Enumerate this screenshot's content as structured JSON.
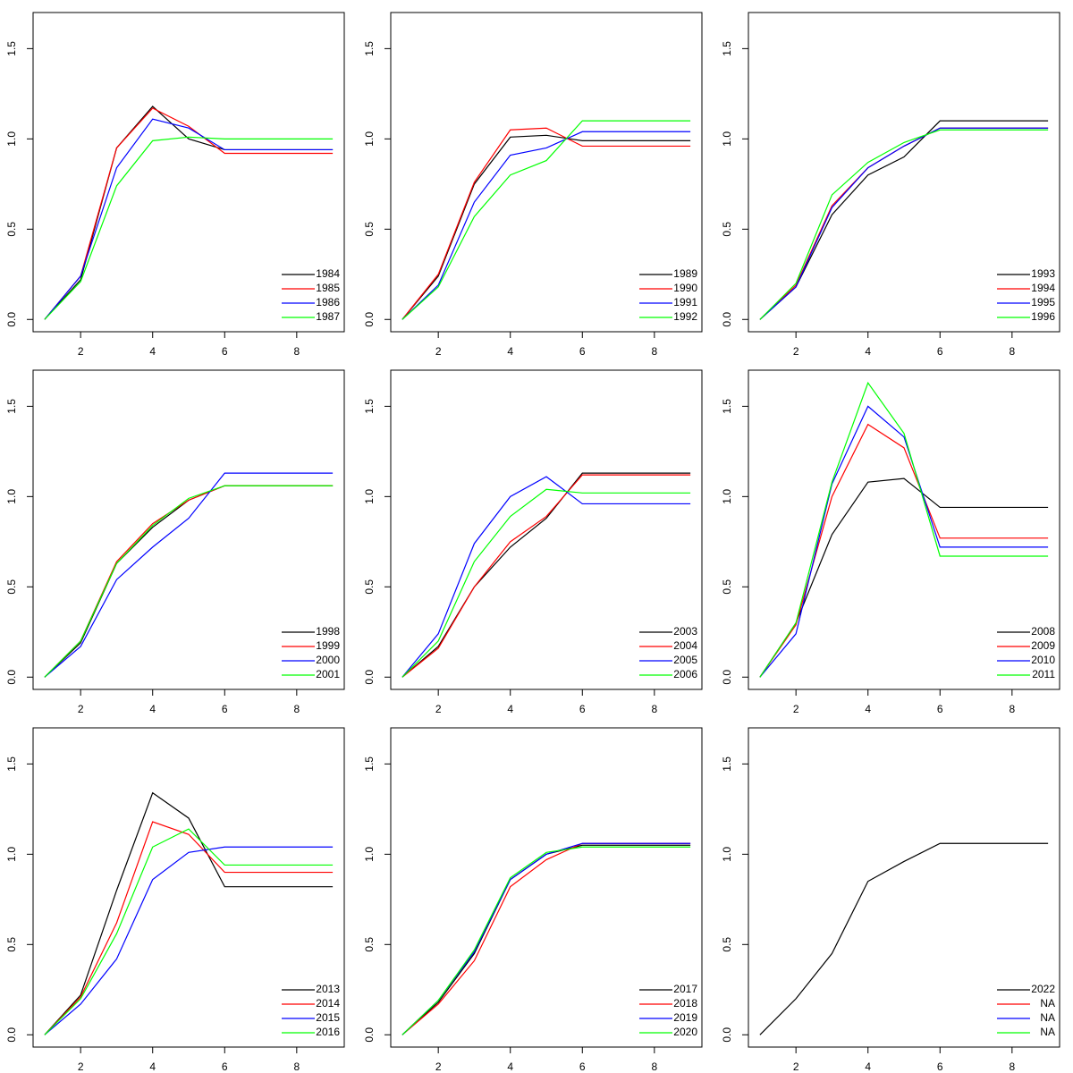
{
  "chart_data": [
    {
      "type": "line",
      "x": [
        1,
        2,
        3,
        4,
        5,
        6,
        7,
        8,
        9
      ],
      "xlim": [
        0.68,
        9.32
      ],
      "xticks": [
        2,
        4,
        6,
        8
      ],
      "ylim": [
        -0.068,
        1.7
      ],
      "yticks": [
        {
          "value": 0,
          "label": "0.0"
        },
        0.5,
        {
          "value": 1,
          "label": "1.0"
        },
        1.5
      ],
      "legend": "bottom-right",
      "series": [
        {
          "name": "1984",
          "color": "#000000",
          "values": [
            0,
            0.22,
            0.95,
            1.18,
            1.0,
            0.94,
            0.94,
            0.94,
            0.94
          ]
        },
        {
          "name": "1985",
          "color": "#ff0000",
          "values": [
            0,
            0.24,
            0.95,
            1.17,
            1.07,
            0.92,
            0.92,
            0.92,
            0.92
          ]
        },
        {
          "name": "1986",
          "color": "#0000ff",
          "values": [
            0,
            0.24,
            0.84,
            1.11,
            1.06,
            0.94,
            0.94,
            0.94,
            0.94
          ]
        },
        {
          "name": "1987",
          "color": "#00ff00",
          "values": [
            0,
            0.21,
            0.74,
            0.99,
            1.01,
            1.0,
            1.0,
            1.0,
            1.0
          ]
        }
      ]
    },
    {
      "type": "line",
      "x": [
        1,
        2,
        3,
        4,
        5,
        6,
        7,
        8,
        9
      ],
      "xlim": [
        0.68,
        9.32
      ],
      "xticks": [
        2,
        4,
        6,
        8
      ],
      "ylim": [
        -0.068,
        1.7
      ],
      "yticks": [
        {
          "value": 0,
          "label": "0.0"
        },
        0.5,
        {
          "value": 1,
          "label": "1.0"
        },
        1.5
      ],
      "legend": "bottom-right",
      "series": [
        {
          "name": "1989",
          "color": "#000000",
          "values": [
            0,
            0.24,
            0.75,
            1.01,
            1.02,
            0.99,
            0.99,
            0.99,
            0.99
          ]
        },
        {
          "name": "1990",
          "color": "#ff0000",
          "values": [
            0,
            0.25,
            0.76,
            1.05,
            1.06,
            0.96,
            0.96,
            0.96,
            0.96
          ]
        },
        {
          "name": "1991",
          "color": "#0000ff",
          "values": [
            0,
            0.19,
            0.65,
            0.91,
            0.95,
            1.04,
            1.04,
            1.04,
            1.04
          ]
        },
        {
          "name": "1992",
          "color": "#00ff00",
          "values": [
            0,
            0.18,
            0.57,
            0.8,
            0.88,
            1.1,
            1.1,
            1.1,
            1.1
          ]
        }
      ]
    },
    {
      "type": "line",
      "x": [
        1,
        2,
        3,
        4,
        5,
        6,
        7,
        8,
        9
      ],
      "xlim": [
        0.68,
        9.32
      ],
      "xticks": [
        2,
        4,
        6,
        8
      ],
      "ylim": [
        -0.068,
        1.7
      ],
      "yticks": [
        {
          "value": 0,
          "label": "0.0"
        },
        0.5,
        {
          "value": 1,
          "label": "1.0"
        },
        1.5
      ],
      "legend": "bottom-right",
      "series": [
        {
          "name": "1993",
          "color": "#000000",
          "values": [
            0,
            0.18,
            0.58,
            0.8,
            0.9,
            1.1,
            1.1,
            1.1,
            1.1
          ]
        },
        {
          "name": "1994",
          "color": "#ff0000",
          "values": [
            0,
            0.19,
            0.63,
            0.84,
            0.96,
            1.06,
            1.06,
            1.06,
            1.06
          ]
        },
        {
          "name": "1995",
          "color": "#0000ff",
          "values": [
            0,
            0.18,
            0.62,
            0.84,
            0.96,
            1.06,
            1.06,
            1.06,
            1.06
          ]
        },
        {
          "name": "1996",
          "color": "#00ff00",
          "values": [
            0,
            0.2,
            0.69,
            0.87,
            0.98,
            1.05,
            1.05,
            1.05,
            1.05
          ]
        }
      ]
    },
    {
      "type": "line",
      "x": [
        1,
        2,
        3,
        4,
        5,
        6,
        7,
        8,
        9
      ],
      "xlim": [
        0.68,
        9.32
      ],
      "xticks": [
        2,
        4,
        6,
        8
      ],
      "ylim": [
        -0.068,
        1.7
      ],
      "yticks": [
        {
          "value": 0,
          "label": "0.0"
        },
        0.5,
        {
          "value": 1,
          "label": "1.0"
        },
        1.5
      ],
      "legend": "bottom-right",
      "series": [
        {
          "name": "1998",
          "color": "#000000",
          "values": [
            0,
            0.19,
            0.63,
            0.83,
            0.98,
            1.06,
            1.06,
            1.06,
            1.06
          ]
        },
        {
          "name": "1999",
          "color": "#ff0000",
          "values": [
            0,
            0.2,
            0.64,
            0.85,
            0.98,
            1.06,
            1.06,
            1.06,
            1.06
          ]
        },
        {
          "name": "2000",
          "color": "#0000ff",
          "values": [
            0,
            0.17,
            0.54,
            0.72,
            0.88,
            1.13,
            1.13,
            1.13,
            1.13
          ]
        },
        {
          "name": "2001",
          "color": "#00ff00",
          "values": [
            0,
            0.2,
            0.63,
            0.84,
            0.99,
            1.06,
            1.06,
            1.06,
            1.06
          ]
        }
      ]
    },
    {
      "type": "line",
      "x": [
        1,
        2,
        3,
        4,
        5,
        6,
        7,
        8,
        9
      ],
      "xlim": [
        0.68,
        9.32
      ],
      "xticks": [
        2,
        4,
        6,
        8
      ],
      "ylim": [
        -0.068,
        1.7
      ],
      "yticks": [
        {
          "value": 0,
          "label": "0.0"
        },
        0.5,
        {
          "value": 1,
          "label": "1.0"
        },
        1.5
      ],
      "legend": "bottom-right",
      "series": [
        {
          "name": "2003",
          "color": "#000000",
          "values": [
            0,
            0.17,
            0.5,
            0.72,
            0.88,
            1.13,
            1.13,
            1.13,
            1.13
          ]
        },
        {
          "name": "2004",
          "color": "#ff0000",
          "values": [
            0,
            0.16,
            0.5,
            0.75,
            0.89,
            1.12,
            1.12,
            1.12,
            1.12
          ]
        },
        {
          "name": "2005",
          "color": "#0000ff",
          "values": [
            0,
            0.24,
            0.74,
            1.0,
            1.11,
            0.96,
            0.96,
            0.96,
            0.96
          ]
        },
        {
          "name": "2006",
          "color": "#00ff00",
          "values": [
            0,
            0.2,
            0.64,
            0.89,
            1.04,
            1.02,
            1.02,
            1.02,
            1.02
          ]
        }
      ]
    },
    {
      "type": "line",
      "x": [
        1,
        2,
        3,
        4,
        5,
        6,
        7,
        8,
        9
      ],
      "xlim": [
        0.68,
        9.32
      ],
      "xticks": [
        2,
        4,
        6,
        8
      ],
      "ylim": [
        -0.068,
        1.7
      ],
      "yticks": [
        {
          "value": 0,
          "label": "0.0"
        },
        0.5,
        {
          "value": 1,
          "label": "1.0"
        },
        1.5
      ],
      "legend": "bottom-right",
      "series": [
        {
          "name": "2008",
          "color": "#000000",
          "values": [
            0,
            0.3,
            0.79,
            1.08,
            1.1,
            0.94,
            0.94,
            0.94,
            0.94
          ]
        },
        {
          "name": "2009",
          "color": "#ff0000",
          "values": [
            0,
            0.29,
            1.0,
            1.4,
            1.27,
            0.77,
            0.77,
            0.77,
            0.77
          ]
        },
        {
          "name": "2010",
          "color": "#0000ff",
          "values": [
            0,
            0.24,
            1.07,
            1.5,
            1.33,
            0.72,
            0.72,
            0.72,
            0.72
          ]
        },
        {
          "name": "2011",
          "color": "#00ff00",
          "values": [
            0,
            0.3,
            1.08,
            1.63,
            1.35,
            0.67,
            0.67,
            0.67,
            0.67
          ]
        }
      ]
    },
    {
      "type": "line",
      "x": [
        1,
        2,
        3,
        4,
        5,
        6,
        7,
        8,
        9
      ],
      "xlim": [
        0.68,
        9.32
      ],
      "xticks": [
        2,
        4,
        6,
        8
      ],
      "ylim": [
        -0.068,
        1.7
      ],
      "yticks": [
        {
          "value": 0,
          "label": "0.0"
        },
        0.5,
        {
          "value": 1,
          "label": "1.0"
        },
        1.5
      ],
      "legend": "bottom-right",
      "series": [
        {
          "name": "2013",
          "color": "#000000",
          "values": [
            0,
            0.22,
            0.8,
            1.34,
            1.2,
            0.82,
            0.82,
            0.82,
            0.82
          ]
        },
        {
          "name": "2014",
          "color": "#ff0000",
          "values": [
            0,
            0.21,
            0.62,
            1.18,
            1.11,
            0.9,
            0.9,
            0.9,
            0.9
          ]
        },
        {
          "name": "2015",
          "color": "#0000ff",
          "values": [
            0,
            0.17,
            0.42,
            0.86,
            1.01,
            1.04,
            1.04,
            1.04,
            1.04
          ]
        },
        {
          "name": "2016",
          "color": "#00ff00",
          "values": [
            0,
            0.2,
            0.56,
            1.04,
            1.14,
            0.94,
            0.94,
            0.94,
            0.94
          ]
        }
      ]
    },
    {
      "type": "line",
      "x": [
        1,
        2,
        3,
        4,
        5,
        6,
        7,
        8,
        9
      ],
      "xlim": [
        0.68,
        9.32
      ],
      "xticks": [
        2,
        4,
        6,
        8
      ],
      "ylim": [
        -0.068,
        1.7
      ],
      "yticks": [
        {
          "value": 0,
          "label": "0.0"
        },
        0.5,
        {
          "value": 1,
          "label": "1.0"
        },
        1.5
      ],
      "legend": "bottom-right",
      "series": [
        {
          "name": "2017",
          "color": "#000000",
          "values": [
            0,
            0.18,
            0.45,
            0.86,
            1.0,
            1.05,
            1.05,
            1.05,
            1.05
          ]
        },
        {
          "name": "2018",
          "color": "#ff0000",
          "values": [
            0,
            0.17,
            0.41,
            0.82,
            0.97,
            1.06,
            1.06,
            1.06,
            1.06
          ]
        },
        {
          "name": "2019",
          "color": "#0000ff",
          "values": [
            0,
            0.19,
            0.46,
            0.86,
            1.0,
            1.06,
            1.06,
            1.06,
            1.06
          ]
        },
        {
          "name": "2020",
          "color": "#00ff00",
          "values": [
            0,
            0.19,
            0.47,
            0.87,
            1.01,
            1.04,
            1.04,
            1.04,
            1.04
          ]
        }
      ]
    },
    {
      "type": "line",
      "x": [
        1,
        2,
        3,
        4,
        5,
        6,
        7,
        8,
        9
      ],
      "xlim": [
        0.68,
        9.32
      ],
      "xticks": [
        2,
        4,
        6,
        8
      ],
      "ylim": [
        -0.068,
        1.7
      ],
      "yticks": [
        {
          "value": 0,
          "label": "0.0"
        },
        0.5,
        {
          "value": 1,
          "label": "1.0"
        },
        1.5
      ],
      "legend": "bottom-right",
      "series": [
        {
          "name": "2022",
          "color": "#000000",
          "values": [
            0,
            0.2,
            0.45,
            0.85,
            0.96,
            1.06,
            1.06,
            1.06,
            1.06
          ]
        },
        {
          "name": "NA",
          "color": "#ff0000",
          "values": [
            null,
            null,
            null,
            null,
            null,
            null,
            null,
            null,
            null
          ]
        },
        {
          "name": "NA",
          "color": "#0000ff",
          "values": [
            null,
            null,
            null,
            null,
            null,
            null,
            null,
            null,
            null
          ]
        },
        {
          "name": "NA",
          "color": "#00ff00",
          "values": [
            null,
            null,
            null,
            null,
            null,
            null,
            null,
            null,
            null
          ]
        }
      ]
    }
  ]
}
